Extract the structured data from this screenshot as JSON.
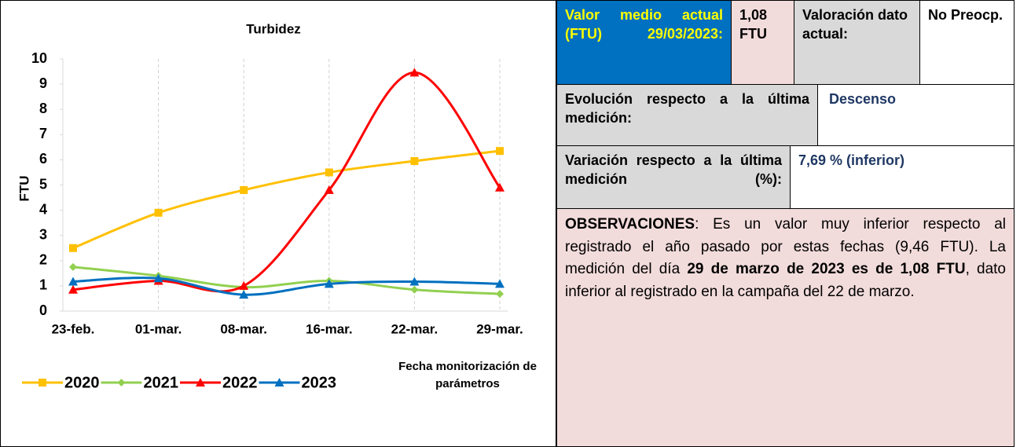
{
  "chart_data": {
    "type": "line",
    "title": "Turbidez",
    "y_label": "FTU",
    "x_label": "Fecha monitorización de parámetros",
    "categories": [
      "23-feb.",
      "01-mar.",
      "08-mar.",
      "16-mar.",
      "22-mar.",
      "29-mar."
    ],
    "series": [
      {
        "name": "2020",
        "color": "#ffc000",
        "marker": "square",
        "values": [
          2.5,
          3.9,
          4.8,
          5.5,
          5.95,
          6.35
        ]
      },
      {
        "name": "2021",
        "color": "#92d050",
        "marker": "diamond",
        "values": [
          1.75,
          1.4,
          0.95,
          1.2,
          0.85,
          0.68
        ]
      },
      {
        "name": "2022",
        "color": "#ff0000",
        "marker": "triangle",
        "values": [
          0.85,
          1.2,
          1.0,
          4.8,
          9.46,
          4.9
        ]
      },
      {
        "name": "2023",
        "color": "#0070c0",
        "marker": "triangle",
        "values": [
          1.17,
          1.3,
          0.65,
          1.08,
          1.17,
          1.08
        ]
      }
    ],
    "ylim": [
      0,
      10
    ],
    "yticks": [
      0,
      1,
      2,
      3,
      4,
      5,
      6,
      7,
      8,
      9,
      10
    ],
    "grid": "x",
    "smooth": true,
    "legend": "bottom"
  },
  "panel": {
    "value_label": "Valor medio actual (FTU) 29/03/2023:",
    "value": "1,08 FTU",
    "rating_label": "Valoración dato actual:",
    "rating": "No Preocp.",
    "evolution_label": "Evolución respecto a la última medición:",
    "evolution": "Descenso",
    "variation_label": "Variación respecto a la última medición (%):",
    "variation": "7,69 % (inferior)",
    "observations": [
      {
        "text": "OBSERVACIONES",
        "bold": true
      },
      {
        "text": ": Es un valor muy inferior respecto al registrado el año pasado por estas fechas (9,46 FTU). La medición del día ",
        "bold": false
      },
      {
        "text": "29 de marzo de 2023 es de 1,08 FTU",
        "bold": true
      },
      {
        "text": ", dato inferior al registrado en la campaña del 22 de marzo.",
        "bold": false
      }
    ]
  }
}
